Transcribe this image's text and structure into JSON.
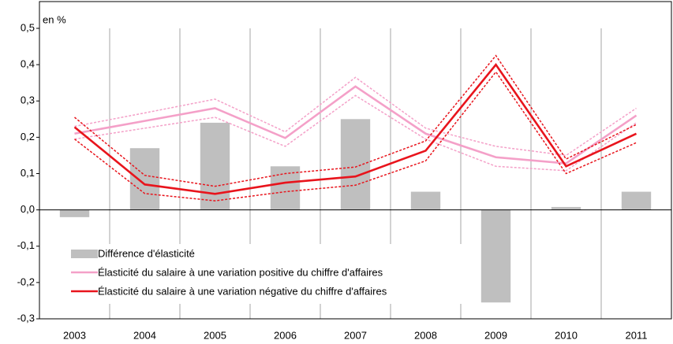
{
  "chart_data": {
    "type": "bar-line",
    "y_unit_label": "en %",
    "categories": [
      "2003",
      "2004",
      "2005",
      "2006",
      "2007",
      "2008",
      "2009",
      "2010",
      "2011"
    ],
    "series": [
      {
        "name": "Différence d'élasticité",
        "type": "bar",
        "color": "#bfbfbf",
        "values": [
          -0.02,
          0.17,
          0.24,
          0.12,
          0.25,
          0.05,
          -0.255,
          0.008,
          0.05
        ]
      },
      {
        "name": "Élasticité du salaire à une variation positive du chiffre d'affaires",
        "type": "line",
        "color": "#f4a0c8",
        "values": [
          0.21,
          0.245,
          0.28,
          0.198,
          0.34,
          0.21,
          0.145,
          0.128,
          0.26
        ],
        "upper": [
          0.23,
          0.267,
          0.305,
          0.215,
          0.365,
          0.225,
          0.175,
          0.15,
          0.28
        ],
        "lower": [
          0.195,
          0.225,
          0.255,
          0.175,
          0.315,
          0.195,
          0.12,
          0.108,
          0.24
        ]
      },
      {
        "name": "Élasticité du salaire à une variation négative du chiffre d'affaires",
        "type": "line",
        "color": "#e8141c",
        "values": [
          0.228,
          0.07,
          0.044,
          0.075,
          0.092,
          0.163,
          0.4,
          0.12,
          0.21
        ],
        "upper": [
          0.255,
          0.095,
          0.065,
          0.1,
          0.118,
          0.19,
          0.425,
          0.14,
          0.235
        ],
        "lower": [
          0.195,
          0.045,
          0.025,
          0.05,
          0.068,
          0.135,
          0.38,
          0.1,
          0.185
        ]
      }
    ],
    "ylim": [
      -0.3,
      0.5
    ],
    "yticks": [
      {
        "value": -0.3,
        "label": "-0,3"
      },
      {
        "value": -0.2,
        "label": "-0,2"
      },
      {
        "value": -0.1,
        "label": "-0,1"
      },
      {
        "value": 0,
        "label": "0,0"
      },
      {
        "value": 0.1,
        "label": "0,1"
      },
      {
        "value": 0.2,
        "label": "0,2"
      },
      {
        "value": 0.3,
        "label": "0,3"
      },
      {
        "value": 0.4,
        "label": "0,4"
      },
      {
        "value": 0.5,
        "label": "0,5"
      }
    ],
    "legend": "bottom-left"
  }
}
